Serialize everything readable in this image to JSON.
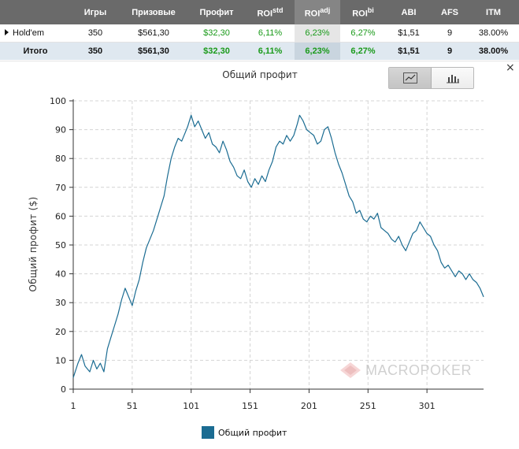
{
  "table": {
    "headers": [
      {
        "label": "",
        "sup": ""
      },
      {
        "label": "Игры",
        "sup": ""
      },
      {
        "label": "Призовые",
        "sup": ""
      },
      {
        "label": "Профит",
        "sup": ""
      },
      {
        "label": "ROI",
        "sup": "std"
      },
      {
        "label": "ROI",
        "sup": "adj"
      },
      {
        "label": "ROI",
        "sup": "bi"
      },
      {
        "label": "ABI",
        "sup": ""
      },
      {
        "label": "AFS",
        "sup": ""
      },
      {
        "label": "ITM",
        "sup": ""
      }
    ],
    "rows": [
      {
        "name": "Hold'em",
        "games": "350",
        "prize": "$561,30",
        "profit": "$32,30",
        "roi_std": "6,11%",
        "roi_adj": "6,23%",
        "roi_bi": "6,27%",
        "abi": "$1,51",
        "afs": "9",
        "itm": "38.00%"
      },
      {
        "name": "Итого",
        "games": "350",
        "prize": "$561,30",
        "profit": "$32,30",
        "roi_std": "6,11%",
        "roi_adj": "6,23%",
        "roi_bi": "6,27%",
        "abi": "$1,51",
        "afs": "9",
        "itm": "38.00%"
      }
    ]
  },
  "panel": {
    "close_glyph": "×",
    "watermark": "MACROPOKER",
    "colors": {
      "line": "#1b6c92",
      "grid": "#d4d4d4",
      "axis": "#333333"
    },
    "view_buttons": [
      {
        "icon": "line-chart-icon",
        "active": true
      },
      {
        "icon": "bar-chart-icon",
        "active": false
      }
    ]
  },
  "chart_data": {
    "type": "line",
    "title": "Общий профит",
    "xlabel": "",
    "ylabel": "Общий профит ($)",
    "xlim": [
      1,
      349
    ],
    "ylim": [
      0,
      100
    ],
    "x_ticks": [
      1,
      51,
      101,
      151,
      201,
      251,
      301
    ],
    "y_ticks": [
      0,
      10,
      20,
      30,
      40,
      50,
      60,
      70,
      80,
      90,
      100
    ],
    "grid": true,
    "legend_position": "bottom",
    "series": [
      {
        "name": "Общий профит",
        "color": "#1b6c92",
        "points": [
          [
            1,
            4
          ],
          [
            5,
            9
          ],
          [
            8,
            12
          ],
          [
            11,
            8
          ],
          [
            15,
            6
          ],
          [
            18,
            10
          ],
          [
            21,
            7
          ],
          [
            24,
            9
          ],
          [
            27,
            6
          ],
          [
            30,
            14
          ],
          [
            33,
            18
          ],
          [
            36,
            22
          ],
          [
            39,
            26
          ],
          [
            42,
            31
          ],
          [
            45,
            35
          ],
          [
            48,
            32
          ],
          [
            51,
            29
          ],
          [
            54,
            34
          ],
          [
            57,
            38
          ],
          [
            60,
            44
          ],
          [
            63,
            49
          ],
          [
            66,
            52
          ],
          [
            69,
            55
          ],
          [
            72,
            59
          ],
          [
            75,
            63
          ],
          [
            78,
            67
          ],
          [
            81,
            74
          ],
          [
            84,
            80
          ],
          [
            87,
            84
          ],
          [
            90,
            87
          ],
          [
            93,
            86
          ],
          [
            96,
            89
          ],
          [
            98,
            91
          ],
          [
            101,
            95
          ],
          [
            104,
            91
          ],
          [
            107,
            93
          ],
          [
            110,
            90
          ],
          [
            113,
            87
          ],
          [
            116,
            89
          ],
          [
            119,
            85
          ],
          [
            122,
            84
          ],
          [
            125,
            82
          ],
          [
            128,
            86
          ],
          [
            131,
            83
          ],
          [
            134,
            79
          ],
          [
            137,
            77
          ],
          [
            140,
            74
          ],
          [
            143,
            73
          ],
          [
            146,
            76
          ],
          [
            149,
            72
          ],
          [
            152,
            70
          ],
          [
            155,
            73
          ],
          [
            158,
            71
          ],
          [
            161,
            74
          ],
          [
            164,
            72
          ],
          [
            167,
            76
          ],
          [
            170,
            79
          ],
          [
            173,
            84
          ],
          [
            176,
            86
          ],
          [
            179,
            85
          ],
          [
            182,
            88
          ],
          [
            185,
            86
          ],
          [
            188,
            88
          ],
          [
            191,
            92
          ],
          [
            193,
            95
          ],
          [
            196,
            93
          ],
          [
            199,
            90
          ],
          [
            202,
            89
          ],
          [
            205,
            88
          ],
          [
            208,
            85
          ],
          [
            211,
            86
          ],
          [
            214,
            90
          ],
          [
            217,
            91
          ],
          [
            220,
            87
          ],
          [
            223,
            82
          ],
          [
            226,
            78
          ],
          [
            229,
            75
          ],
          [
            232,
            71
          ],
          [
            235,
            67
          ],
          [
            238,
            65
          ],
          [
            241,
            61
          ],
          [
            244,
            62
          ],
          [
            247,
            59
          ],
          [
            250,
            58
          ],
          [
            253,
            60
          ],
          [
            256,
            59
          ],
          [
            259,
            61
          ],
          [
            262,
            56
          ],
          [
            265,
            55
          ],
          [
            268,
            54
          ],
          [
            271,
            52
          ],
          [
            274,
            51
          ],
          [
            277,
            53
          ],
          [
            280,
            50
          ],
          [
            283,
            48
          ],
          [
            286,
            51
          ],
          [
            289,
            54
          ],
          [
            292,
            55
          ],
          [
            295,
            58
          ],
          [
            298,
            56
          ],
          [
            301,
            54
          ],
          [
            304,
            53
          ],
          [
            307,
            50
          ],
          [
            310,
            48
          ],
          [
            313,
            44
          ],
          [
            316,
            42
          ],
          [
            319,
            43
          ],
          [
            322,
            41
          ],
          [
            325,
            39
          ],
          [
            328,
            41
          ],
          [
            331,
            40
          ],
          [
            334,
            38
          ],
          [
            337,
            40
          ],
          [
            340,
            38
          ],
          [
            343,
            37
          ],
          [
            346,
            35
          ],
          [
            349,
            32
          ]
        ]
      }
    ]
  }
}
